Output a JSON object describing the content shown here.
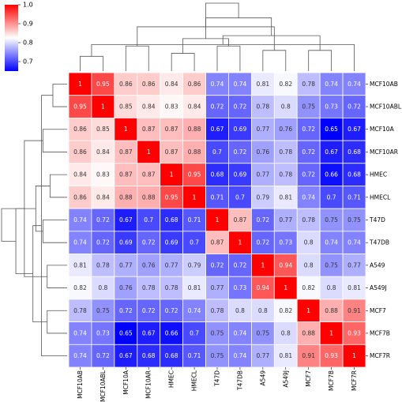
{
  "chart_data": {
    "type": "heatmap",
    "title": "",
    "xlabel": "",
    "ylabel": "",
    "row_labels": [
      "MCF10AB",
      "MCF10ABL",
      "MCF10A",
      "MCF10AR",
      "HMEC",
      "HMECL",
      "T47D",
      "T47DB",
      "A549",
      "A549J",
      "MCF7",
      "MCF7B",
      "MCF7R"
    ],
    "col_labels": [
      "MCF10AB",
      "MCF10ABL",
      "MCF10A",
      "MCF10AR",
      "HMEC",
      "HMECL",
      "T47D",
      "T47DB",
      "A549",
      "A549J",
      "MCF7",
      "MCF7B",
      "MCF7R"
    ],
    "values": [
      [
        1,
        0.95,
        0.86,
        0.86,
        0.84,
        0.86,
        0.74,
        0.74,
        0.81,
        0.82,
        0.78,
        0.74,
        0.74
      ],
      [
        0.95,
        1,
        0.85,
        0.84,
        0.83,
        0.84,
        0.72,
        0.72,
        0.78,
        0.8,
        0.75,
        0.73,
        0.72
      ],
      [
        0.86,
        0.85,
        1,
        0.87,
        0.87,
        0.88,
        0.67,
        0.69,
        0.77,
        0.76,
        0.72,
        0.65,
        0.67
      ],
      [
        0.86,
        0.84,
        0.87,
        1,
        0.87,
        0.88,
        0.7,
        0.72,
        0.76,
        0.78,
        0.72,
        0.67,
        0.68
      ],
      [
        0.84,
        0.83,
        0.87,
        0.87,
        1,
        0.95,
        0.68,
        0.69,
        0.77,
        0.78,
        0.72,
        0.66,
        0.68
      ],
      [
        0.86,
        0.84,
        0.88,
        0.88,
        0.95,
        1,
        0.71,
        0.7,
        0.79,
        0.81,
        0.74,
        0.7,
        0.71
      ],
      [
        0.74,
        0.72,
        0.67,
        0.7,
        0.68,
        0.71,
        1,
        0.87,
        0.72,
        0.77,
        0.78,
        0.75,
        0.75
      ],
      [
        0.74,
        0.72,
        0.69,
        0.72,
        0.69,
        0.7,
        0.87,
        1,
        0.72,
        0.73,
        0.8,
        0.74,
        0.74
      ],
      [
        0.81,
        0.78,
        0.77,
        0.76,
        0.77,
        0.79,
        0.72,
        0.72,
        1,
        0.94,
        0.8,
        0.75,
        0.77
      ],
      [
        0.82,
        0.8,
        0.76,
        0.78,
        0.78,
        0.81,
        0.77,
        0.73,
        0.94,
        1,
        0.82,
        0.8,
        0.81
      ],
      [
        0.78,
        0.75,
        0.72,
        0.72,
        0.72,
        0.74,
        0.78,
        0.8,
        0.8,
        0.82,
        1,
        0.88,
        0.91
      ],
      [
        0.74,
        0.73,
        0.65,
        0.67,
        0.66,
        0.7,
        0.75,
        0.74,
        0.75,
        0.8,
        0.88,
        1,
        0.93
      ],
      [
        0.74,
        0.72,
        0.67,
        0.68,
        0.68,
        0.71,
        0.75,
        0.74,
        0.77,
        0.81,
        0.91,
        0.93,
        1
      ]
    ],
    "value_range": [
      0.65,
      1.0
    ],
    "colormap": [
      "#0000ff",
      "#ffffff",
      "#ff0000"
    ],
    "colorbar": {
      "ticks": [
        "1.0",
        "0.9",
        "0.8",
        "0.7"
      ],
      "tick_values": [
        1.0,
        0.9,
        0.8,
        0.7
      ],
      "placement": "top-left"
    },
    "dendrogram": {
      "placement": "top and left",
      "merges": [
        [
          0,
          1
        ],
        [
          4,
          5
        ],
        [
          10,
          11
        ],
        [
          8,
          9
        ],
        [
          6,
          7
        ],
        [
          2,
          3
        ],
        [
          12,
          13
        ],
        [
          14,
          17
        ],
        [
          15,
          19
        ],
        [
          16,
          18
        ],
        [
          20,
          21
        ],
        [
          22,
          23
        ]
      ]
    },
    "grid": false
  }
}
